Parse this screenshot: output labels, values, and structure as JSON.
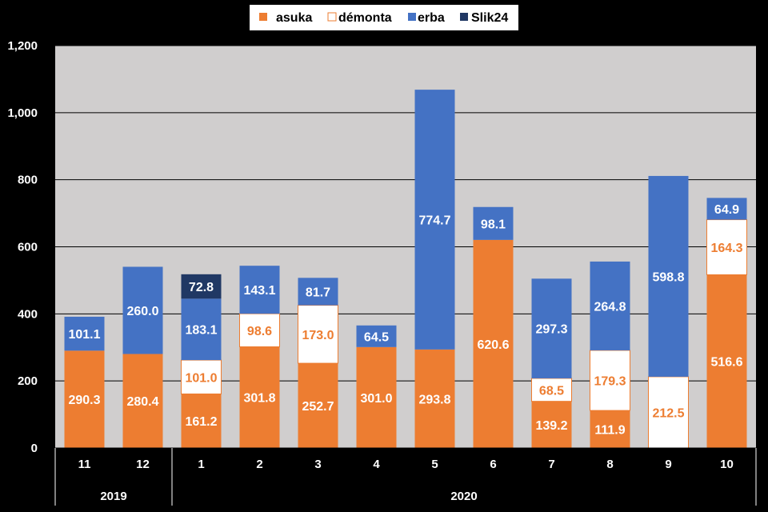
{
  "chart_data": {
    "type": "bar",
    "stacked": true,
    "categories": [
      "11",
      "12",
      "1",
      "2",
      "3",
      "4",
      "5",
      "6",
      "7",
      "8",
      "9",
      "10"
    ],
    "year_groups": [
      {
        "label": "2019",
        "count": 2
      },
      {
        "label": "2020",
        "count": 10
      }
    ],
    "series": [
      {
        "name": "asuka",
        "color": "#ED7D31",
        "values": [
          290.3,
          280.4,
          161.2,
          301.8,
          252.7,
          301.0,
          293.8,
          620.6,
          139.2,
          111.9,
          0,
          516.6
        ],
        "labels": [
          "290.3",
          "280.4",
          "161.2",
          "301.8",
          "252.7",
          "301.0",
          "293.8",
          "620.6",
          "139.2",
          "111.9",
          "",
          "516.6"
        ]
      },
      {
        "name": "démonta",
        "color": "#FFFFFF",
        "values": [
          0,
          0,
          101.0,
          98.6,
          173.0,
          0,
          0,
          0,
          68.5,
          179.3,
          212.5,
          164.3
        ],
        "labels": [
          "",
          "",
          "101.0",
          "98.6",
          "173.0",
          "",
          "",
          "",
          "68.5",
          "179.3",
          "212.5",
          "164.3"
        ]
      },
      {
        "name": "erba",
        "color": "#4472C4",
        "values": [
          101.1,
          260.0,
          183.1,
          143.1,
          81.7,
          64.5,
          774.7,
          98.1,
          297.3,
          264.8,
          598.8,
          64.9
        ],
        "labels": [
          "101.1",
          "260.0",
          "183.1",
          "143.1",
          "81.7",
          "64.5",
          "774.7",
          "98.1",
          "297.3",
          "264.8",
          "598.8",
          "64.9"
        ]
      },
      {
        "name": "Slik24",
        "color": "#203864",
        "values": [
          0,
          0,
          72.8,
          0,
          0,
          0,
          0,
          0,
          0,
          0,
          0,
          0
        ],
        "labels": [
          "",
          "",
          "72.8",
          "",
          "",
          "",
          "",
          "",
          "",
          "",
          "",
          ""
        ]
      }
    ],
    "ylim": [
      0,
      1200
    ],
    "yticks": [
      "0",
      "200",
      "400",
      "600",
      "800",
      "1,000",
      "1,200"
    ],
    "ytick_values": [
      0,
      200,
      400,
      600,
      800,
      1000,
      1200
    ],
    "grid": true,
    "legend_position": "top-center",
    "plot_background": "#D0CECE",
    "title": "",
    "xlabel": "",
    "ylabel": ""
  }
}
